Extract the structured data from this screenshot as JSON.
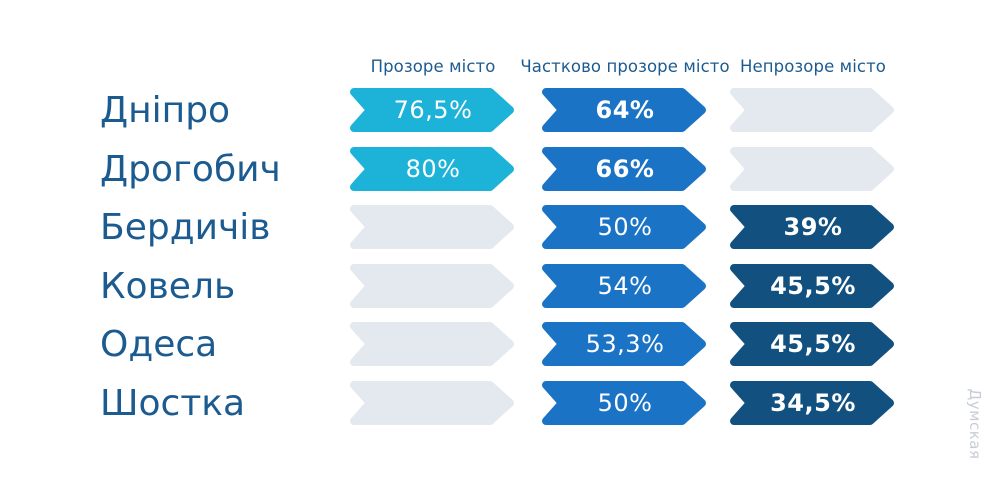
{
  "watermark": "Думская",
  "chart_data": {
    "type": "bar",
    "title": "",
    "unit": "%",
    "orientation": "horizontal-ribbon-arrows",
    "categories": [
      "Дніпро",
      "Дрогобич",
      "Бердичів",
      "Ковель",
      "Одеса",
      "Шостка"
    ],
    "series": [
      {
        "name": "Прозоре місто",
        "color": "#1db3d8",
        "values": [
          76.5,
          80,
          null,
          null,
          null,
          null
        ],
        "labels": [
          "76,5%",
          "80%",
          "",
          "",
          "",
          ""
        ],
        "bold": [
          false,
          false,
          false,
          false,
          false,
          false
        ]
      },
      {
        "name": "Частково прозоре місто",
        "color": "#1a73c5",
        "values": [
          64,
          66,
          50,
          54,
          53.3,
          50
        ],
        "labels": [
          "64%",
          "66%",
          "50%",
          "54%",
          "53,3%",
          "50%"
        ],
        "bold": [
          true,
          true,
          false,
          false,
          false,
          false
        ]
      },
      {
        "name": "Непрозоре місто",
        "color": "#11507f",
        "values": [
          null,
          null,
          39,
          45.5,
          45.5,
          34.5
        ],
        "labels": [
          "",
          "",
          "39%",
          "45,5%",
          "45,5%",
          "34,5%"
        ],
        "bold": [
          false,
          false,
          true,
          true,
          true,
          true
        ]
      }
    ],
    "empty_color": "#e4e9f0",
    "category_label_color": "#1c5b90",
    "header_color": "#1c5b90",
    "value_text_color": "#ffffff",
    "background_color": "#ffffff",
    "legend_position": "top-as-column-headers",
    "grid": false
  }
}
